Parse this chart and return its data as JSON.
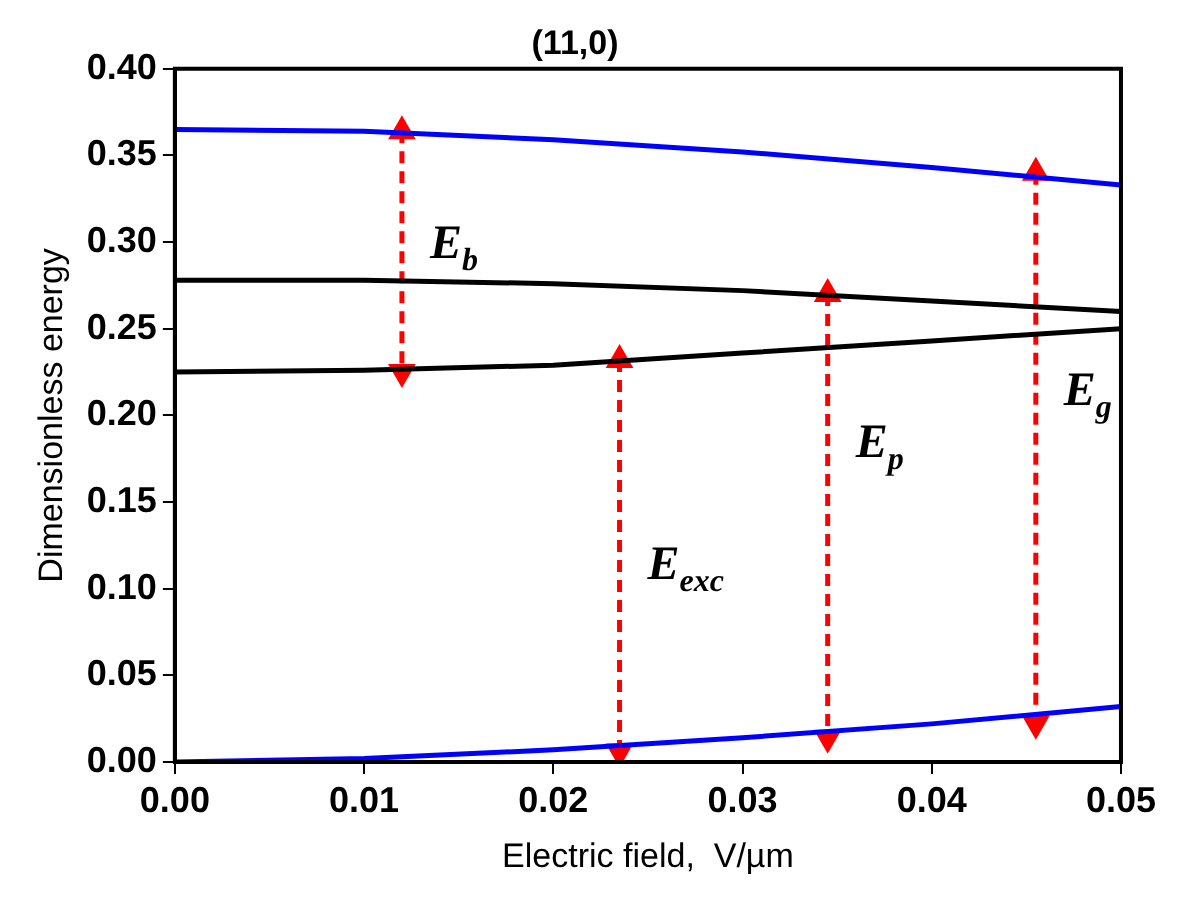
{
  "chart_data": {
    "type": "line",
    "title": "(11,0)",
    "xlabel": "Electric field,  V/µm",
    "ylabel": "Dimensionless energy",
    "xlim": [
      0,
      0.05
    ],
    "xticks": [
      {
        "value": 0,
        "label": "0.00"
      },
      {
        "value": 0.01,
        "label": "0.01"
      },
      {
        "value": 0.02,
        "label": "0.02"
      },
      {
        "value": 0.03,
        "label": "0.03"
      },
      {
        "value": 0.04,
        "label": "0.04"
      },
      {
        "value": 0.05,
        "label": "0.05"
      }
    ],
    "ylim": [
      0,
      0.4
    ],
    "yticks": [
      {
        "value": 0,
        "label": "0.00"
      },
      {
        "value": 0.05,
        "label": "0.05"
      },
      {
        "value": 0.1,
        "label": "0.10"
      },
      {
        "value": 0.15,
        "label": "0.15"
      },
      {
        "value": 0.2,
        "label": "0.20"
      },
      {
        "value": 0.25,
        "label": "0.25"
      },
      {
        "value": 0.3,
        "label": "0.30"
      },
      {
        "value": 0.35,
        "label": "0.35"
      },
      {
        "value": 0.4,
        "label": "0.40"
      }
    ],
    "grid": false,
    "legend": false,
    "marker": "none",
    "line_style": "solid",
    "series": [
      {
        "color": "#0000ff",
        "x": [
          0,
          0.01,
          0.02,
          0.03,
          0.04,
          0.05
        ],
        "values": [
          0.365,
          0.364,
          0.359,
          0.352,
          0.343,
          0.333
        ]
      },
      {
        "color": "#000000",
        "x": [
          0,
          0.01,
          0.02,
          0.03,
          0.04,
          0.05
        ],
        "values": [
          0.278,
          0.278,
          0.276,
          0.272,
          0.266,
          0.26
        ]
      },
      {
        "color": "#000000",
        "x": [
          0,
          0.01,
          0.02,
          0.03,
          0.04,
          0.05
        ],
        "values": [
          0.225,
          0.226,
          0.229,
          0.236,
          0.243,
          0.25
        ]
      },
      {
        "color": "#0000ff",
        "x": [
          0,
          0.01,
          0.02,
          0.03,
          0.04,
          0.05
        ],
        "values": [
          0,
          0.002,
          0.007,
          0.014,
          0.022,
          0.032
        ]
      },
      {
        "color": "#ff0000",
        "line_style": "dashed",
        "marker": "triangle",
        "x": [
          0.012,
          0.012
        ],
        "values": [
          0.364,
          0.225
        ]
      },
      {
        "color": "#ff0000",
        "line_style": "dashed",
        "marker": "triangle",
        "x": [
          0.0235,
          0.0235
        ],
        "values": [
          0.232,
          0.006
        ]
      },
      {
        "color": "#ff0000",
        "line_style": "dashed",
        "marker": "triangle",
        "x": [
          0.0345,
          0.0345
        ],
        "values": [
          0.27,
          0.014
        ]
      },
      {
        "color": "#ff0000",
        "line_style": "dashed",
        "marker": "triangle",
        "x": [
          0.0455,
          0.0455
        ],
        "values": [
          0.34,
          0.022
        ]
      }
    ],
    "annotations": [
      {
        "text": "E$_{b}$",
        "x": 0.012,
        "y": 0.3
      },
      {
        "text": "E$_{exc}$",
        "x": 0.0235,
        "y": 0.115
      },
      {
        "text": "E$_{p}$",
        "x": 0.0345,
        "y": 0.185
      },
      {
        "text": "E$_{g}$",
        "x": 0.0455,
        "y": 0.215
      }
    ]
  }
}
